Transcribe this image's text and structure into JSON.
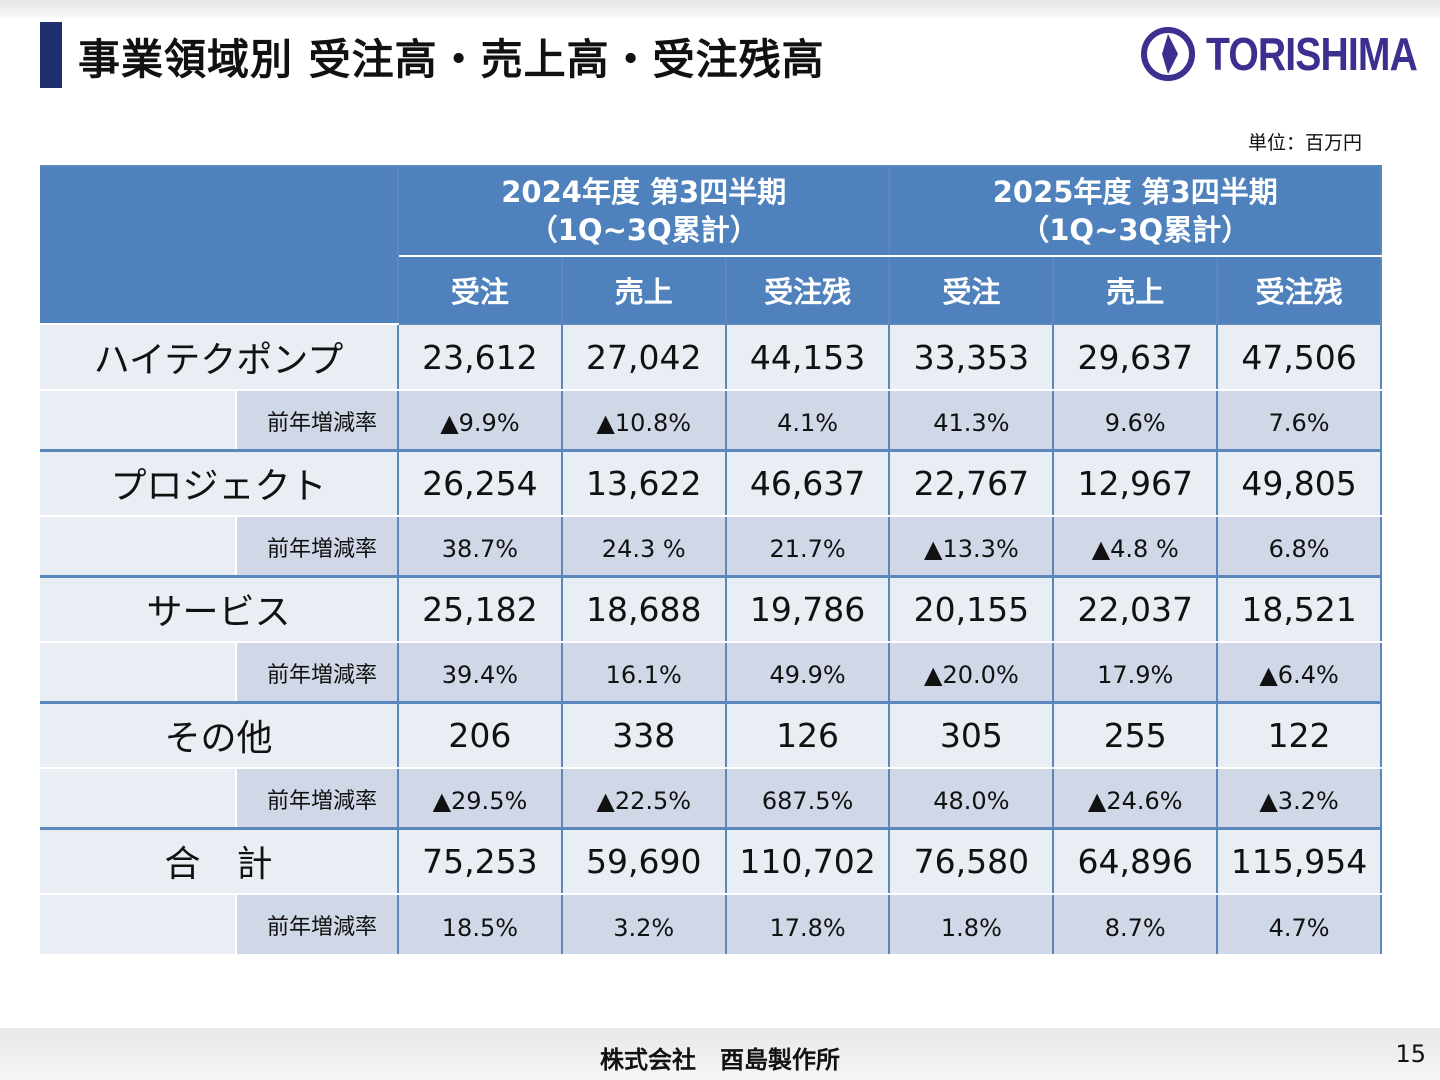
{
  "title": "事業領域別 受注高・売上高・受注残高",
  "logo": {
    "text": "TORISHIMA",
    "color": "#3b2f8f"
  },
  "unit": "単位：百万円",
  "colors": {
    "header": "#4f81bd",
    "row": "#e9edf4",
    "rate_row": "#d0d8e8"
  },
  "periods": [
    {
      "line1": "2024年度 第3四半期",
      "line2": "（1Q~3Q累計）"
    },
    {
      "line1": "2025年度 第3四半期",
      "line2": "（1Q~3Q累計）"
    }
  ],
  "columns": [
    "受注",
    "売上",
    "受注残",
    "受注",
    "売上",
    "受注残"
  ],
  "rate_label": "前年増減率",
  "rows": [
    {
      "name": "ハイテクポンプ",
      "values": [
        "23,612",
        "27,042",
        "44,153",
        "33,353",
        "29,637",
        "47,506"
      ],
      "rates": [
        "▲9.9%",
        "▲10.8%",
        "4.1%",
        "41.3%",
        "9.6%",
        "7.6%"
      ]
    },
    {
      "name": "プロジェクト",
      "values": [
        "26,254",
        "13,622",
        "46,637",
        "22,767",
        "12,967",
        "49,805"
      ],
      "rates": [
        "38.7%",
        "24.3 %",
        "21.7%",
        "▲13.3%",
        "▲4.8 %",
        "6.8%"
      ]
    },
    {
      "name": "サービス",
      "values": [
        "25,182",
        "18,688",
        "19,786",
        "20,155",
        "22,037",
        "18,521"
      ],
      "rates": [
        "39.4%",
        "16.1%",
        "49.9%",
        "▲20.0%",
        "17.9%",
        "▲6.4%"
      ]
    },
    {
      "name": "その他",
      "values": [
        "206",
        "338",
        "126",
        "305",
        "255",
        "122"
      ],
      "rates": [
        "▲29.5%",
        "▲22.5%",
        "687.5%",
        "48.0%",
        "▲24.6%",
        "▲3.2%"
      ]
    },
    {
      "name": "合　計",
      "values": [
        "75,253",
        "59,690",
        "110,702",
        "76,580",
        "64,896",
        "115,954"
      ],
      "rates": [
        "18.5%",
        "3.2%",
        "17.8%",
        "1.8%",
        "8.7%",
        "4.7%"
      ]
    }
  ],
  "footer": {
    "company": "株式会社　酉島製作所",
    "page": "15"
  }
}
